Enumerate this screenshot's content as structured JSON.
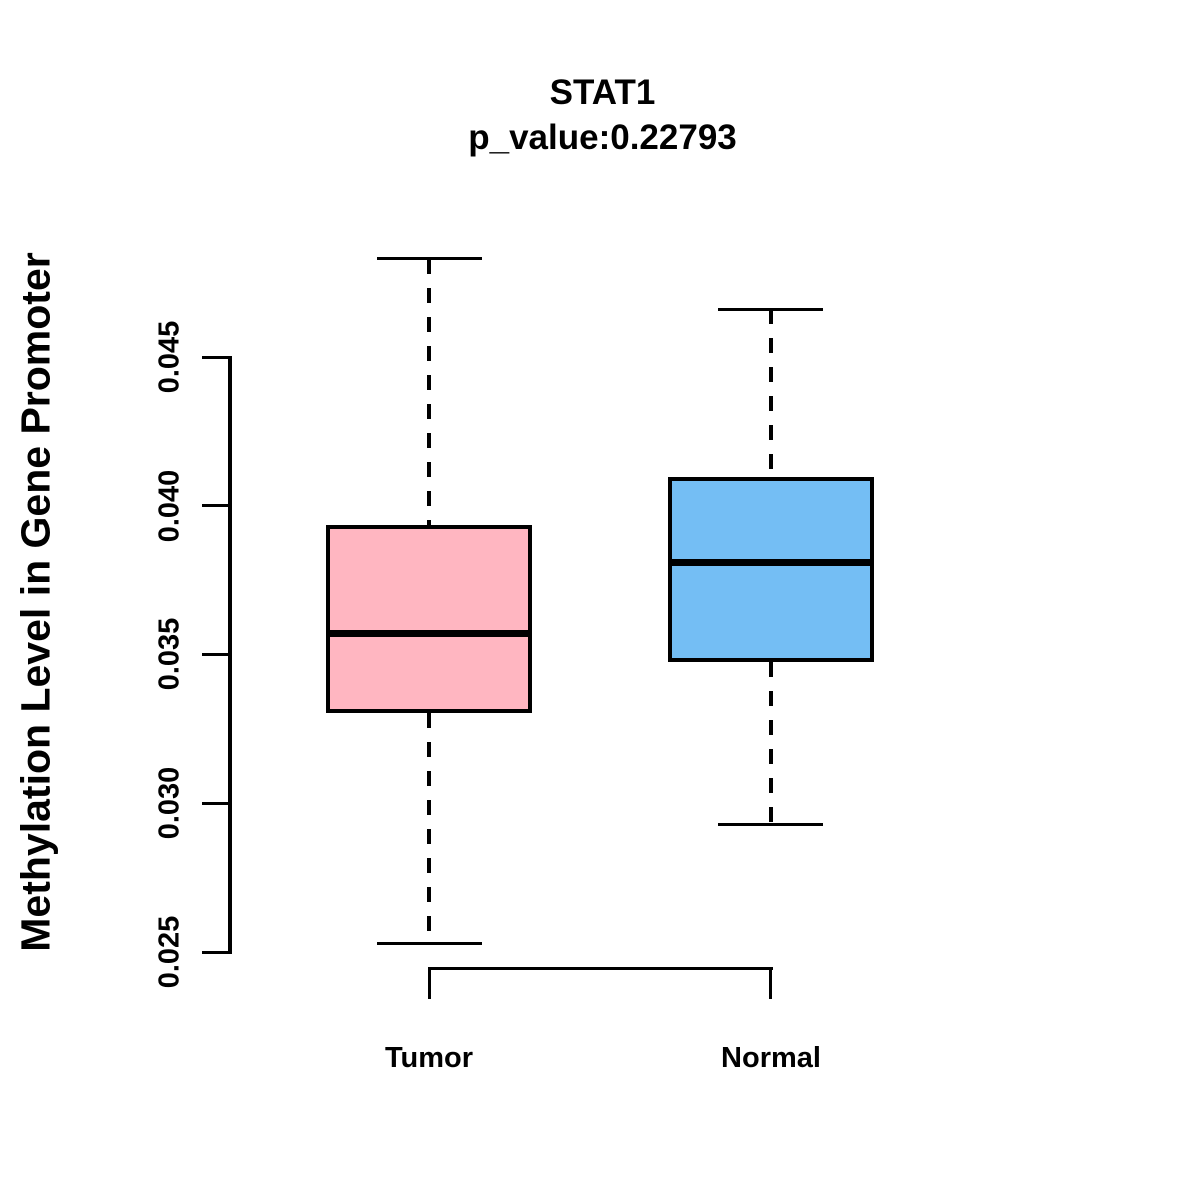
{
  "header": {
    "title": "STAT1",
    "subtitle": "p_value:0.22793"
  },
  "y_axis": {
    "label": "Methylation Level in Gene Promoter",
    "tick_labels": [
      "0.025",
      "0.030",
      "0.035",
      "0.040",
      "0.045"
    ]
  },
  "colors": {
    "tumor_fill": "#FFB6C1",
    "normal_fill": "#74BEF4",
    "stroke": "#000000",
    "background": "#FFFFFF"
  },
  "chart_data": {
    "type": "boxplot",
    "title": "STAT1",
    "subtitle": "p_value:0.22793",
    "ylabel": "Methylation Level in Gene Promoter",
    "ylim": [
      0.025,
      0.045
    ],
    "y_ticks": [
      0.025,
      0.03,
      0.035,
      0.04,
      0.045
    ],
    "categories": [
      "Tumor",
      "Normal"
    ],
    "grid": false,
    "legend": "none",
    "whisker_style": "dashed",
    "groups": [
      {
        "label": "Tumor",
        "color": "#FFB6C1",
        "min": 0.0253,
        "q1": 0.0331,
        "median": 0.0357,
        "q3": 0.0393,
        "max": 0.0483
      },
      {
        "label": "Normal",
        "color": "#74BEF4",
        "min": 0.0293,
        "q1": 0.0348,
        "median": 0.0381,
        "q3": 0.0409,
        "max": 0.0466
      }
    ]
  }
}
